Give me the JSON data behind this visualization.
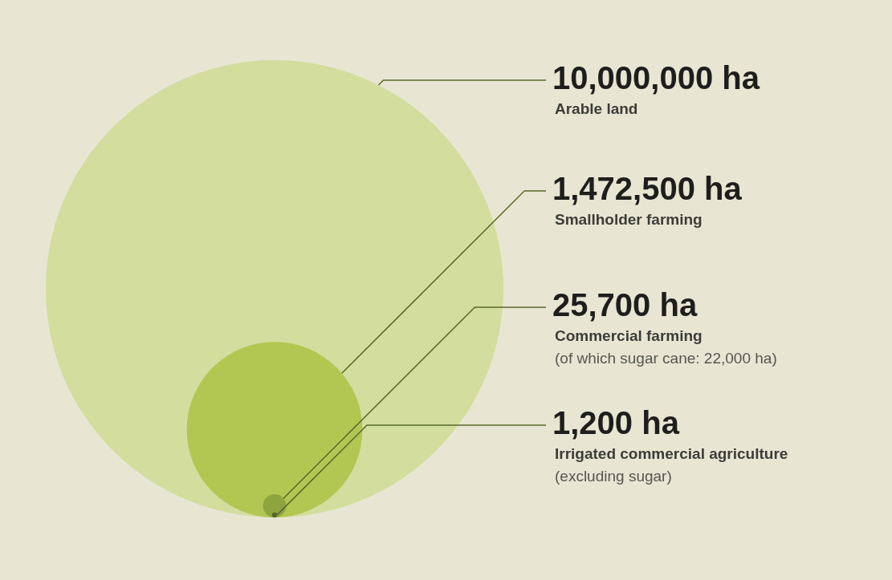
{
  "chart_data": {
    "type": "other",
    "categories": [
      "Arable land",
      "Smallholder farming",
      "Commercial farming\n(of which sugar cane: 22,000 ha)",
      "Irrigated commercial agriculture\n(excluding sugar)"
    ],
    "values": [
      10000000,
      1472500,
      25700,
      1200
    ],
    "value_labels": [
      "10,000,000 ha",
      "1,472,500 ha",
      "25,700 ha",
      "1,200 ha"
    ],
    "colors": [
      "#d3dd9e",
      "#b2c652",
      "#8ea43e",
      "#55652a"
    ],
    "legend": false
  }
}
